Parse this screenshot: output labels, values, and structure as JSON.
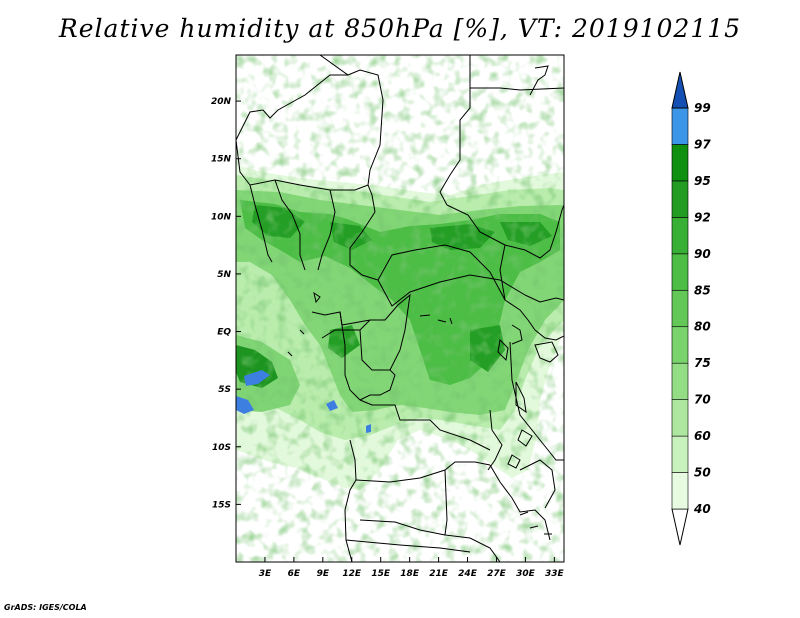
{
  "title": "Relative humidity at 850hPa [%], VT: 2019102115",
  "credit": "GrADS: IGES/COLA",
  "chart_data": {
    "type": "heatmap",
    "variable": "Relative humidity at 850hPa",
    "units": "%",
    "valid_time": "2019102115",
    "lon_range": [
      0,
      34
    ],
    "lat_range": [
      -20,
      24
    ],
    "x_ticks": [
      {
        "value": 3,
        "label": "3E"
      },
      {
        "value": 6,
        "label": "6E"
      },
      {
        "value": 9,
        "label": "9E"
      },
      {
        "value": 12,
        "label": "12E"
      },
      {
        "value": 15,
        "label": "15E"
      },
      {
        "value": 18,
        "label": "18E"
      },
      {
        "value": 21,
        "label": "21E"
      },
      {
        "value": 24,
        "label": "24E"
      },
      {
        "value": 27,
        "label": "27E"
      },
      {
        "value": 30,
        "label": "30E"
      },
      {
        "value": 33,
        "label": "33E"
      }
    ],
    "y_ticks": [
      {
        "value": 20,
        "label": "20N"
      },
      {
        "value": 15,
        "label": "15N"
      },
      {
        "value": 10,
        "label": "10N"
      },
      {
        "value": 5,
        "label": "5N"
      },
      {
        "value": 0,
        "label": "EQ"
      },
      {
        "value": -5,
        "label": "5S"
      },
      {
        "value": -10,
        "label": "10S"
      },
      {
        "value": -15,
        "label": "15S"
      }
    ],
    "colorbar": {
      "levels": [
        40,
        50,
        60,
        70,
        75,
        80,
        85,
        90,
        92,
        95,
        97,
        99
      ],
      "level_labels": [
        "40",
        "50",
        "60",
        "70",
        "75",
        "80",
        "85",
        "90",
        "92",
        "95",
        "97",
        "99"
      ],
      "colors": [
        "#e6fbe0",
        "#c8f1bd",
        "#aee8a0",
        "#93de85",
        "#7ad36c",
        "#63c858",
        "#4dbd45",
        "#38b035",
        "#229c23",
        "#109010",
        "#3c96e8",
        "#1e6fd4",
        "#1450b4"
      ],
      "extend": "both"
    }
  }
}
